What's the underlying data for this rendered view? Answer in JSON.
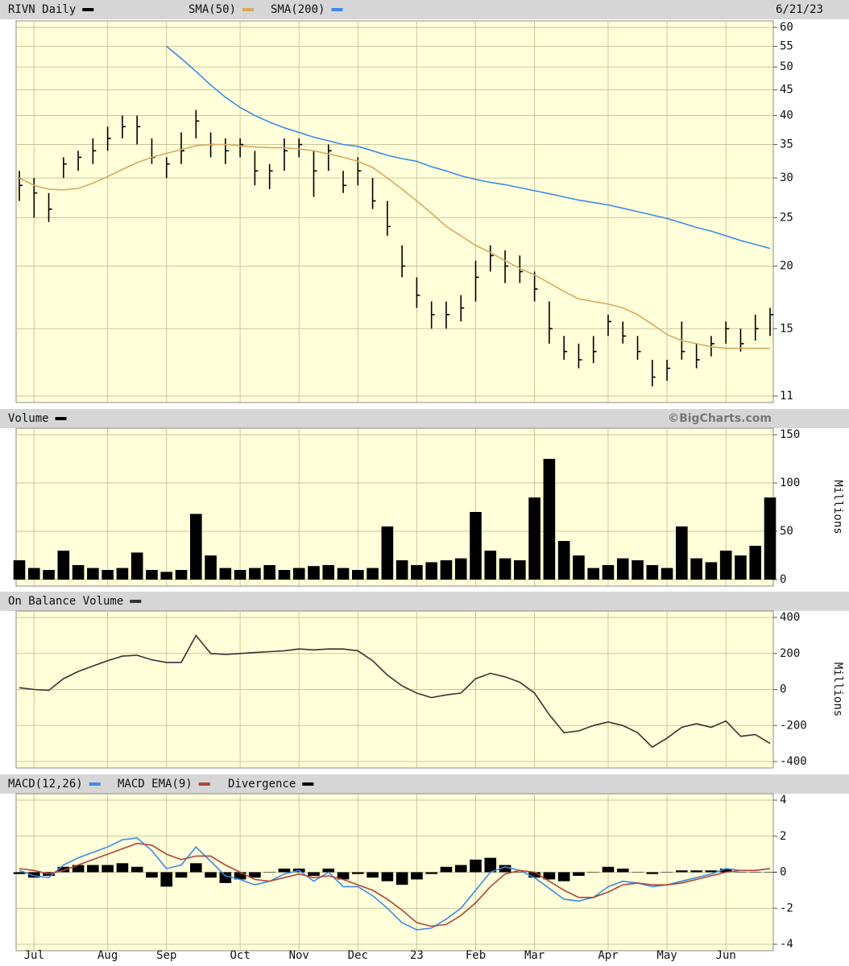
{
  "chart_data": [
    {
      "type": "ohlc",
      "date": "6/21/23",
      "yscale": "log",
      "ylim": [
        11,
        60
      ],
      "yticks": [
        11,
        15,
        20,
        25,
        30,
        35,
        40,
        45,
        50,
        55,
        60
      ],
      "grid": true,
      "series": [
        {
          "name": "RIVN Daily",
          "color": "#000000",
          "high": [
            31,
            30,
            28,
            33,
            34,
            36,
            38,
            40,
            40,
            36,
            33,
            37,
            41,
            37,
            36,
            36,
            34,
            32,
            36,
            36,
            34,
            35,
            31,
            33,
            30,
            27,
            22,
            19,
            17,
            17,
            17.5,
            20.5,
            22,
            21.5,
            21,
            19.5,
            17,
            14.5,
            14,
            14.5,
            16,
            15.5,
            14.5,
            13,
            13,
            15.5,
            14,
            14.5,
            15.5,
            15,
            16,
            16.5
          ],
          "low": [
            27,
            25,
            24.5,
            30,
            31,
            32,
            34,
            36,
            35,
            32,
            30,
            32,
            36,
            33,
            32,
            33,
            29,
            28.5,
            31,
            33,
            27.5,
            31,
            28,
            29,
            26,
            23,
            19,
            16.5,
            15,
            15,
            15.5,
            17,
            19.5,
            18.5,
            18.5,
            17,
            14,
            13,
            12.5,
            12.8,
            14.5,
            14,
            13,
            11.5,
            11.8,
            13,
            12.5,
            13.2,
            14,
            13.5,
            14.2,
            14.5
          ],
          "close": [
            29,
            28,
            26,
            32,
            33,
            34,
            36,
            38,
            38,
            33,
            32,
            34,
            39,
            35,
            34,
            35,
            31,
            31,
            34,
            35,
            31,
            34,
            29,
            31,
            27,
            24,
            20,
            17.5,
            16,
            16,
            16.5,
            19,
            21,
            20,
            19.5,
            18,
            15,
            13.5,
            13,
            13.5,
            15.5,
            14.5,
            13.5,
            12,
            12.5,
            13.5,
            13,
            14,
            15,
            14,
            15,
            16
          ]
        },
        {
          "name": "SMA(50)",
          "color": "#d9a860",
          "values": [
            30,
            29,
            28.5,
            28.4,
            28.6,
            29.3,
            30.2,
            31.2,
            32.2,
            33,
            33.6,
            34.2,
            34.8,
            35,
            35,
            34.8,
            34.6,
            34.5,
            34.5,
            34.3,
            34,
            33.5,
            33,
            32.4,
            31.5,
            30,
            28.5,
            27,
            25.5,
            24,
            23,
            22,
            21.3,
            20.5,
            19.8,
            19.2,
            18.5,
            17.8,
            17.2,
            17,
            16.8,
            16.5,
            16,
            15.3,
            14.6,
            14.2,
            14,
            13.8,
            13.7,
            13.7,
            13.7,
            13.7
          ]
        },
        {
          "name": "SMA(200)",
          "color": "#3d8ae6",
          "values": [
            null,
            null,
            null,
            null,
            null,
            null,
            null,
            null,
            null,
            null,
            55,
            52,
            49,
            46,
            43.5,
            41.5,
            40,
            38.8,
            37.8,
            37,
            36.2,
            35.6,
            35,
            34.7,
            34,
            33.3,
            32.8,
            32.4,
            31.6,
            31,
            30.3,
            29.8,
            29.4,
            29.1,
            28.7,
            28.3,
            27.9,
            27.5,
            27.1,
            26.8,
            26.5,
            26.1,
            25.7,
            25.3,
            24.9,
            24.4,
            23.9,
            23.5,
            23,
            22.5,
            22.1,
            21.7
          ]
        }
      ]
    },
    {
      "type": "bar",
      "credit": "©BigCharts.com",
      "ylabel": "Millions",
      "ylim": [
        0,
        150
      ],
      "yticks": [
        0,
        50,
        100,
        150
      ],
      "grid": true,
      "series": [
        {
          "name": "Volume",
          "color": "#000000",
          "values": [
            20,
            12,
            10,
            30,
            15,
            12,
            10,
            12,
            28,
            10,
            8,
            10,
            68,
            25,
            12,
            10,
            12,
            15,
            10,
            12,
            14,
            15,
            12,
            10,
            12,
            55,
            20,
            15,
            18,
            20,
            22,
            70,
            30,
            22,
            20,
            85,
            125,
            40,
            25,
            12,
            15,
            22,
            20,
            15,
            12,
            55,
            22,
            18,
            30,
            25,
            35,
            85
          ]
        }
      ]
    },
    {
      "type": "line",
      "ylabel": "Millions",
      "ylim": [
        -400,
        400
      ],
      "yticks": [
        -400,
        -200,
        0,
        200,
        400
      ],
      "grid": true,
      "series": [
        {
          "name": "On Balance Volume",
          "color": "#333333",
          "values": [
            10,
            0,
            -5,
            60,
            100,
            130,
            160,
            185,
            190,
            165,
            150,
            150,
            300,
            200,
            195,
            200,
            205,
            210,
            215,
            225,
            220,
            225,
            225,
            215,
            160,
            80,
            20,
            -20,
            -45,
            -30,
            -20,
            60,
            90,
            70,
            40,
            -20,
            -140,
            -240,
            -230,
            -200,
            -180,
            -200,
            -240,
            -320,
            -270,
            -210,
            -190,
            -210,
            -175,
            -260,
            -250,
            -300
          ]
        }
      ]
    },
    {
      "type": "line",
      "ylim": [
        -4,
        4
      ],
      "yticks": [
        -4,
        -2,
        0,
        2,
        4
      ],
      "grid": true,
      "categories": [
        null,
        "Jul",
        null,
        null,
        null,
        null,
        "Aug",
        null,
        null,
        null,
        "Sep",
        null,
        null,
        null,
        null,
        "Oct",
        null,
        null,
        null,
        "Nov",
        null,
        null,
        null,
        "Dec",
        null,
        null,
        null,
        "23",
        null,
        null,
        null,
        "Feb",
        null,
        null,
        null,
        "Mar",
        null,
        null,
        null,
        null,
        "Apr",
        null,
        null,
        null,
        "May",
        null,
        null,
        null,
        "Jun",
        null,
        null,
        null
      ],
      "series": [
        {
          "name": "MACD(12,26)",
          "color": "#3d8ae6",
          "values": [
            0.1,
            -0.2,
            -0.3,
            0.4,
            0.8,
            1.1,
            1.4,
            1.8,
            1.9,
            1.2,
            0.2,
            0.4,
            1.4,
            0.6,
            -0.2,
            -0.4,
            -0.7,
            -0.5,
            -0.1,
            0.1,
            -0.5,
            0,
            -0.8,
            -0.8,
            -1.3,
            -2.0,
            -2.8,
            -3.2,
            -3.1,
            -2.6,
            -2.0,
            -1.0,
            0,
            0.3,
            0.1,
            -0.3,
            -0.9,
            -1.5,
            -1.6,
            -1.4,
            -0.8,
            -0.5,
            -0.6,
            -0.8,
            -0.7,
            -0.5,
            -0.3,
            -0.1,
            0.2,
            0.1,
            0.1,
            0.2
          ]
        },
        {
          "name": "MACD EMA(9)",
          "color": "#b0443a",
          "values": [
            0.2,
            0.1,
            -0.1,
            0.1,
            0.4,
            0.7,
            1.0,
            1.3,
            1.6,
            1.5,
            1.0,
            0.7,
            0.9,
            0.9,
            0.4,
            0.0,
            -0.4,
            -0.5,
            -0.3,
            -0.1,
            -0.3,
            -0.2,
            -0.4,
            -0.7,
            -1.0,
            -1.5,
            -2.1,
            -2.8,
            -3.0,
            -2.9,
            -2.4,
            -1.7,
            -0.8,
            -0.1,
            0.1,
            0,
            -0.5,
            -1.0,
            -1.4,
            -1.4,
            -1.1,
            -0.7,
            -0.6,
            -0.7,
            -0.7,
            -0.6,
            -0.4,
            -0.2,
            0,
            0.1,
            0.1,
            0.2
          ]
        },
        {
          "name": "Divergence",
          "color": "#000000",
          "mark": "bar",
          "values": [
            -0.1,
            -0.3,
            -0.2,
            0.3,
            0.4,
            0.4,
            0.4,
            0.5,
            0.3,
            -0.3,
            -0.8,
            -0.3,
            0.5,
            -0.3,
            -0.6,
            -0.4,
            -0.3,
            0,
            0.2,
            0.2,
            -0.2,
            0.2,
            -0.4,
            -0.1,
            -0.3,
            -0.5,
            -0.7,
            -0.4,
            -0.1,
            0.3,
            0.4,
            0.7,
            0.8,
            0.4,
            0,
            -0.3,
            -0.4,
            -0.5,
            -0.2,
            0,
            0.3,
            0.2,
            0,
            -0.1,
            0,
            0.1,
            0.1,
            0.1,
            0.2,
            0,
            0,
            0
          ]
        }
      ]
    }
  ]
}
